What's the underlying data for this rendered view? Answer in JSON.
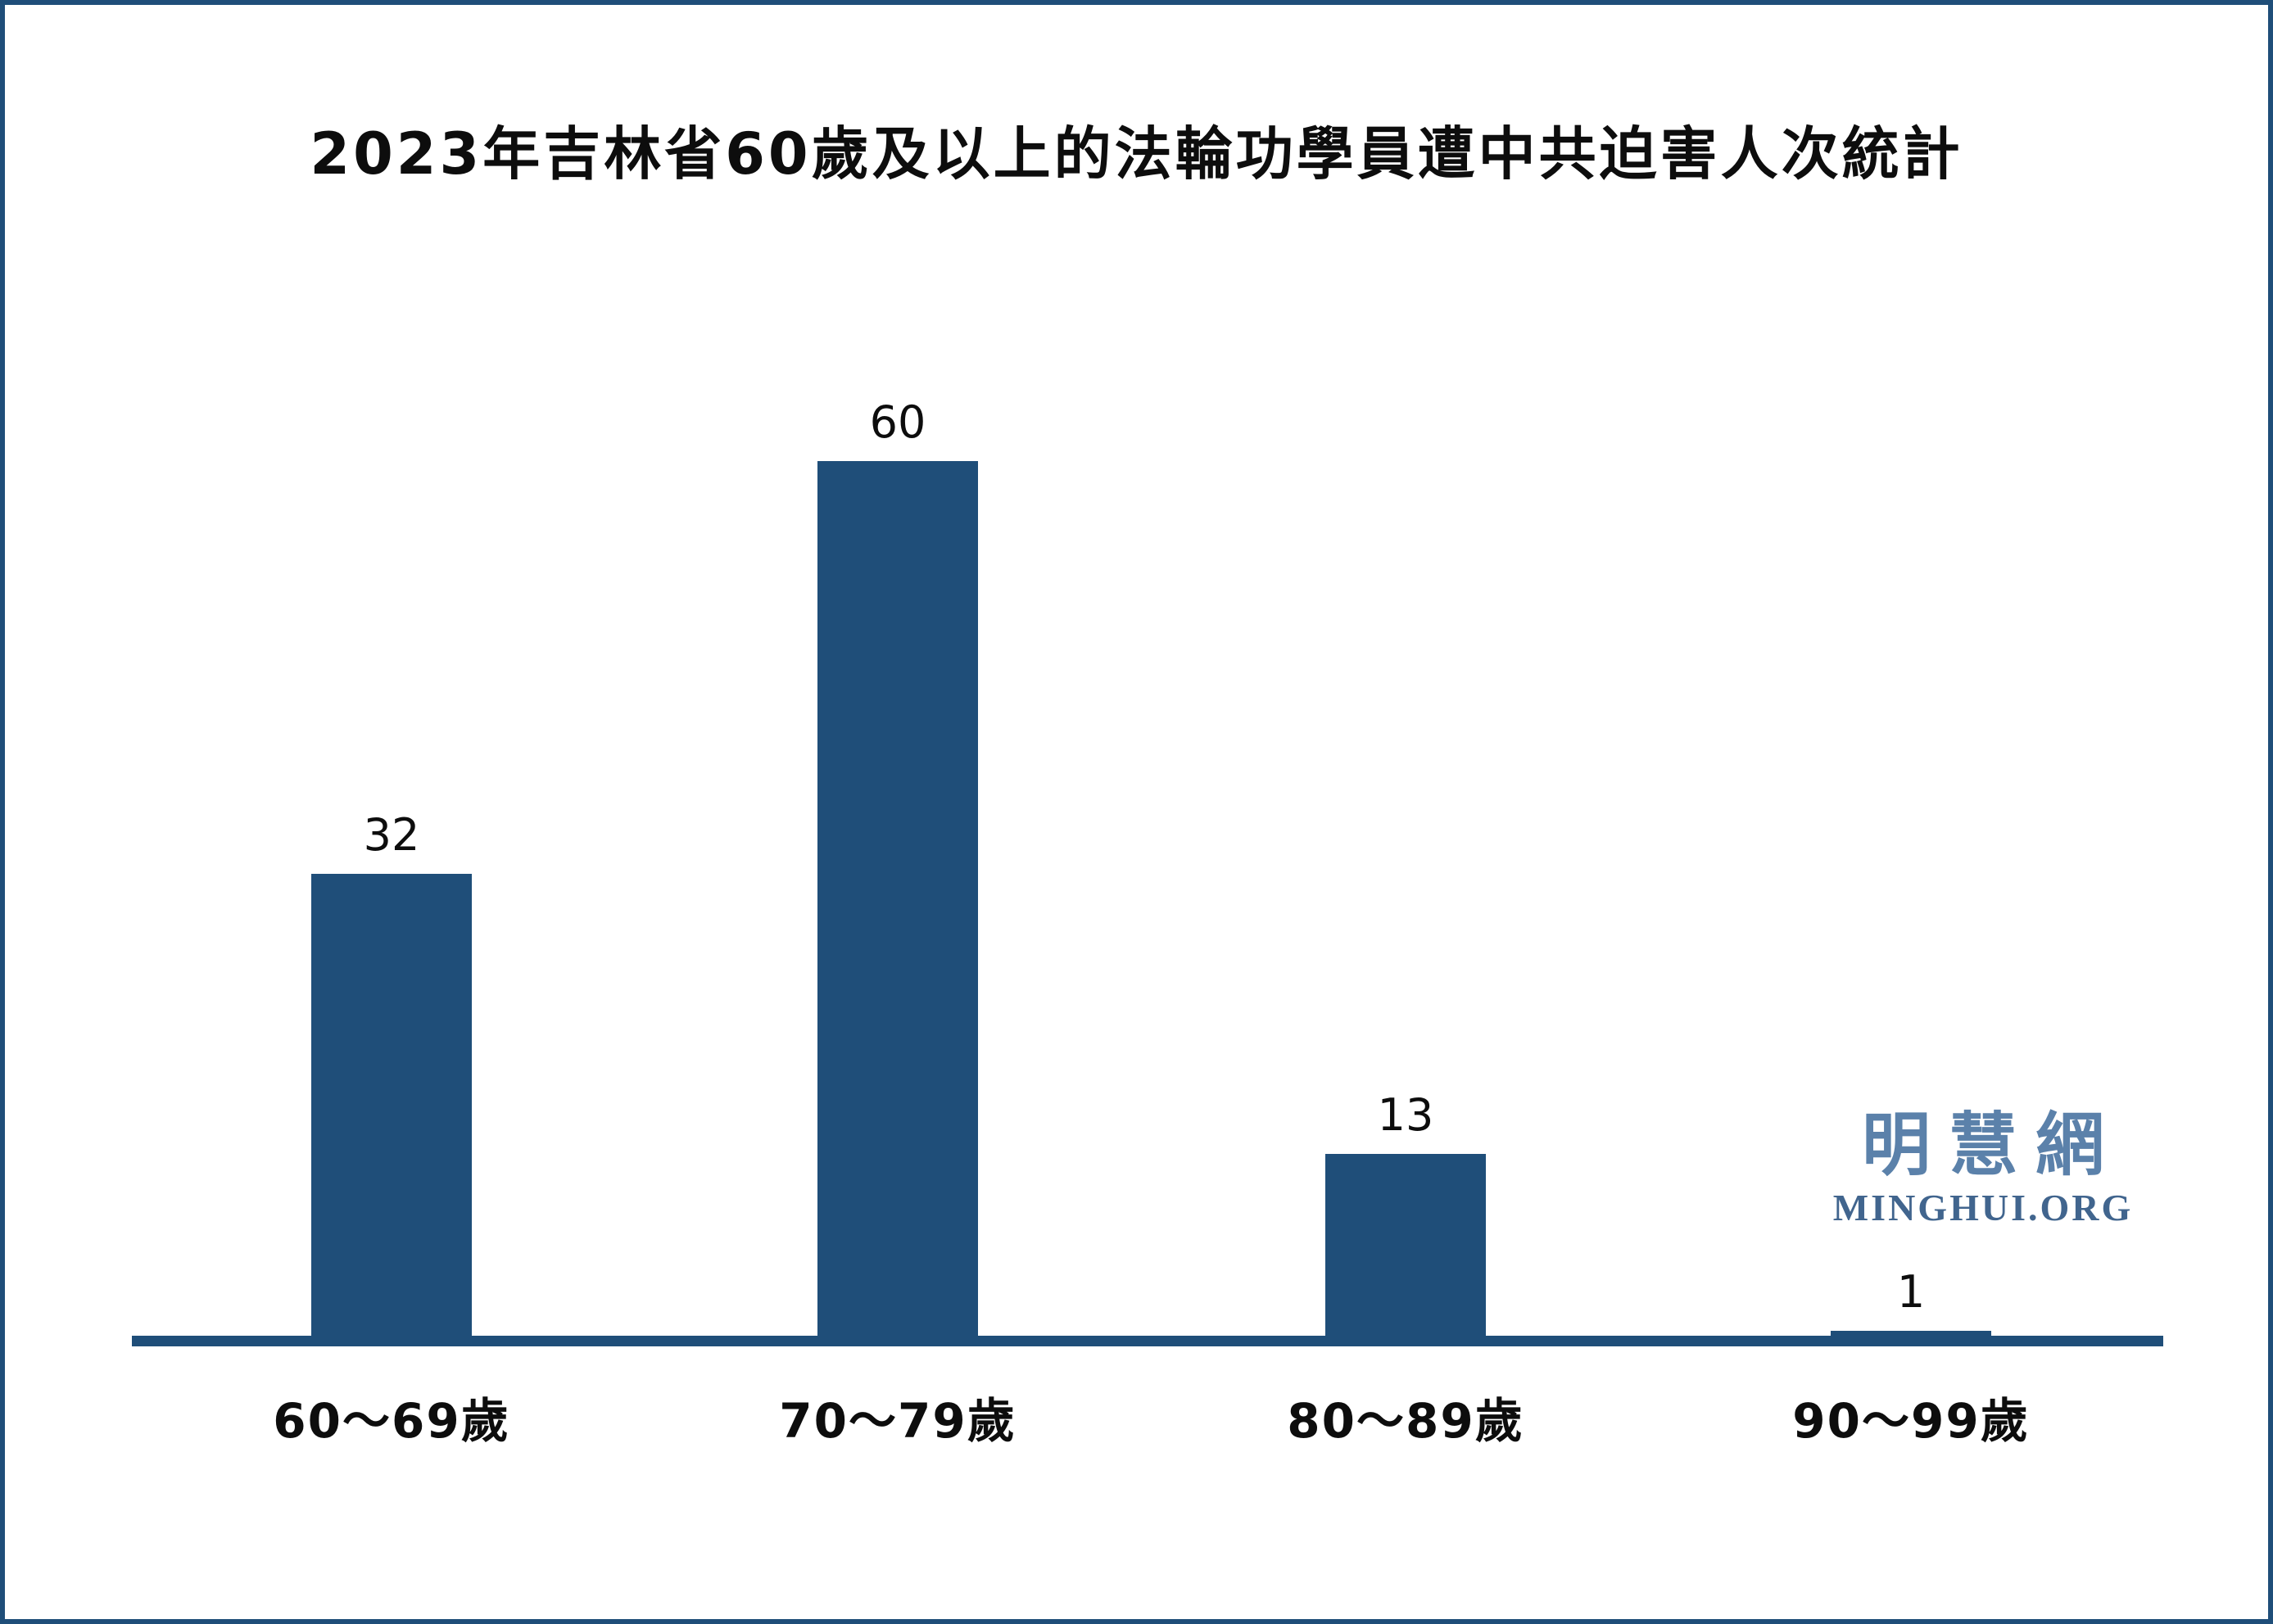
{
  "frame": {
    "border_color": "#1F4E79",
    "background": "#FFFFFF"
  },
  "title": "2023年吉林省60歲及以上的法輪功學員遭中共迫害人次統計",
  "watermark": {
    "cjk": "明慧網",
    "latin": "MINGHUI.ORG",
    "cjk_color": "#5B81AA",
    "latin_color": "#41658E"
  },
  "chart_data": {
    "type": "bar",
    "title": "2023年吉林省60歲及以上的法輪功學員遭中共迫害人次統計",
    "categories": [
      "60～69歲",
      "70～79歲",
      "80～89歲",
      "90～99歲"
    ],
    "values": [
      32,
      60,
      13,
      1
    ],
    "value_labels": [
      "32",
      "60",
      "13",
      "1"
    ],
    "xlabel": "",
    "ylabel": "",
    "ylim": [
      0,
      65
    ],
    "grid": false,
    "legend": false,
    "bar_color": "#1F4E79",
    "axis_color": "#1F4E79",
    "text_color": "#0d0d0d"
  }
}
